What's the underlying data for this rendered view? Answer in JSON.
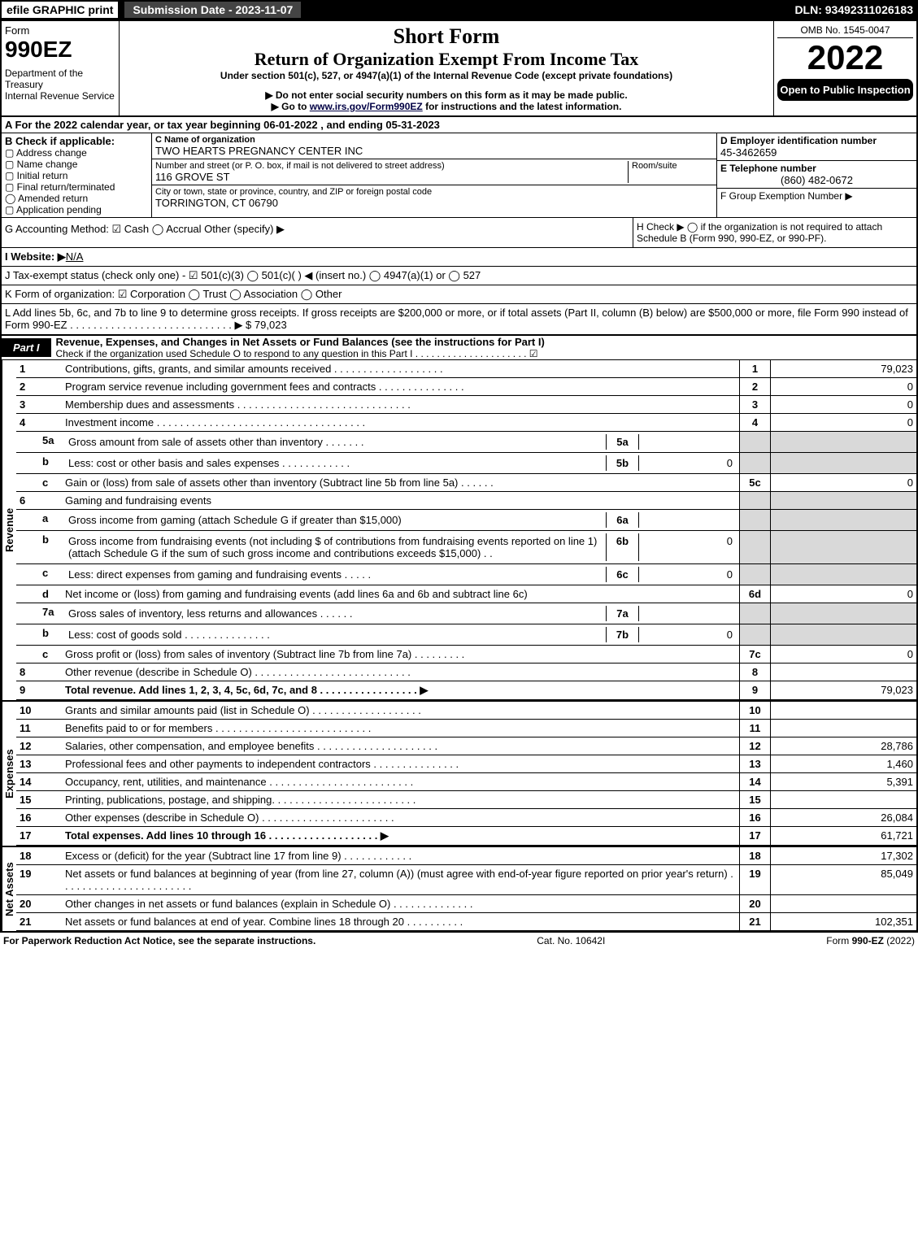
{
  "topbar": {
    "efile": "efile GRAPHIC print",
    "submission": "Submission Date - 2023-11-07",
    "dln": "DLN: 93492311026183"
  },
  "header": {
    "form_label": "Form",
    "form_number": "990EZ",
    "dept": "Department of the Treasury\nInternal Revenue Service",
    "title_short": "Short Form",
    "title_main": "Return of Organization Exempt From Income Tax",
    "under": "Under section 501(c), 527, or 4947(a)(1) of the Internal Revenue Code (except private foundations)",
    "warn1": "▶ Do not enter social security numbers on this form as it may be made public.",
    "warn2": "▶ Go to www.irs.gov/Form990EZ for instructions and the latest information.",
    "omb": "OMB No. 1545-0047",
    "year": "2022",
    "open": "Open to Public Inspection"
  },
  "secA": "A  For the 2022 calendar year, or tax year beginning 06-01-2022 , and ending 05-31-2023",
  "secB": {
    "label": "B  Check if applicable:",
    "opts": [
      "Address change",
      "Name change",
      "Initial return",
      "Final return/terminated",
      "Amended return",
      "Application pending"
    ]
  },
  "secC": {
    "name_label": "C Name of organization",
    "name": "TWO HEARTS PREGNANCY CENTER INC",
    "street_label": "Number and street (or P. O. box, if mail is not delivered to street address)",
    "street": "116 GROVE ST",
    "room_label": "Room/suite",
    "city_label": "City or town, state or province, country, and ZIP or foreign postal code",
    "city": "TORRINGTON, CT  06790"
  },
  "secDEF": {
    "d_label": "D Employer identification number",
    "d_val": "45-3462659",
    "e_label": "E Telephone number",
    "e_val": "(860) 482-0672",
    "f_label": "F Group Exemption Number  ▶"
  },
  "secG": "G Accounting Method:  ☑ Cash  ◯ Accrual   Other (specify) ▶",
  "secH": "H  Check ▶  ◯  if the organization is not required to attach Schedule B (Form 990, 990-EZ, or 990-PF).",
  "secI_label": "I Website: ▶",
  "secI_val": "N/A",
  "secJ": "J Tax-exempt status (check only one) - ☑ 501(c)(3) ◯ 501(c)(  ) ◀ (insert no.) ◯ 4947(a)(1) or ◯ 527",
  "secK": "K Form of organization:  ☑ Corporation  ◯ Trust  ◯ Association  ◯ Other",
  "secL": {
    "text": "L Add lines 5b, 6c, and 7b to line 9 to determine gross receipts. If gross receipts are $200,000 or more, or if total assets (Part II, column (B) below) are $500,000 or more, file Form 990 instead of Form 990-EZ  .  .  .  .  .  .  .  .  .  .  .  .  .  .  .  .  .  .  .  .  .  .  .  .  .  .  .  .  ▶ $",
    "val": "79,023"
  },
  "part1": {
    "tab": "Part I",
    "title": "Revenue, Expenses, and Changes in Net Assets or Fund Balances (see the instructions for Part I)",
    "check": "Check if the organization used Schedule O to respond to any question in this Part I  .  .  .  .  .  .  .  .  .  .  .  .  .  .  .  .  .  .  .  .  .  ☑"
  },
  "side": {
    "rev": "Revenue",
    "exp": "Expenses",
    "net": "Net Assets"
  },
  "lines": {
    "l1": {
      "n": "1",
      "t": "Contributions, gifts, grants, and similar amounts received  .  .  .  .  .  .  .  .  .  .  .  .  .  .  .  .  .  .  .",
      "r": "1",
      "v": "79,023"
    },
    "l2": {
      "n": "2",
      "t": "Program service revenue including government fees and contracts  .  .  .  .  .  .  .  .  .  .  .  .  .  .  .",
      "r": "2",
      "v": "0"
    },
    "l3": {
      "n": "3",
      "t": "Membership dues and assessments  .  .  .  .  .  .  .  .  .  .  .  .  .  .  .  .  .  .  .  .  .  .  .  .  .  .  .  .  .  .",
      "r": "3",
      "v": "0"
    },
    "l4": {
      "n": "4",
      "t": "Investment income  .  .  .  .  .  .  .  .  .  .  .  .  .  .  .  .  .  .  .  .  .  .  .  .  .  .  .  .  .  .  .  .  .  .  .  .",
      "r": "4",
      "v": "0"
    },
    "l5a": {
      "n": "5a",
      "t": "Gross amount from sale of assets other than inventory  .  .  .  .  .  .  .",
      "box": "5a",
      "bv": ""
    },
    "l5b": {
      "n": "b",
      "t": "Less: cost or other basis and sales expenses  .  .  .  .  .  .  .  .  .  .  .  .",
      "box": "5b",
      "bv": "0"
    },
    "l5c": {
      "n": "c",
      "t": "Gain or (loss) from sale of assets other than inventory (Subtract line 5b from line 5a)  .  .  .  .  .  .",
      "r": "5c",
      "v": "0"
    },
    "l6": {
      "n": "6",
      "t": "Gaming and fundraising events"
    },
    "l6a": {
      "n": "a",
      "t": "Gross income from gaming (attach Schedule G if greater than $15,000)",
      "box": "6a",
      "bv": ""
    },
    "l6b": {
      "n": "b",
      "t": "Gross income from fundraising events (not including $                     of contributions from fundraising events reported on line 1) (attach Schedule G if the sum of such gross income and contributions exceeds $15,000)   .   .",
      "box": "6b",
      "bv": "0"
    },
    "l6c": {
      "n": "c",
      "t": "Less: direct expenses from gaming and fundraising events   .  .  .  .  .",
      "box": "6c",
      "bv": "0"
    },
    "l6d": {
      "n": "d",
      "t": "Net income or (loss) from gaming and fundraising events (add lines 6a and 6b and subtract line 6c)",
      "r": "6d",
      "v": "0"
    },
    "l7a": {
      "n": "7a",
      "t": "Gross sales of inventory, less returns and allowances  .  .  .  .  .  .",
      "box": "7a",
      "bv": ""
    },
    "l7b": {
      "n": "b",
      "t": "Less: cost of goods sold        .  .  .  .  .  .  .  .  .  .  .  .  .  .  .",
      "box": "7b",
      "bv": "0"
    },
    "l7c": {
      "n": "c",
      "t": "Gross profit or (loss) from sales of inventory (Subtract line 7b from line 7a)  .  .  .  .  .  .  .  .  .",
      "r": "7c",
      "v": "0"
    },
    "l8": {
      "n": "8",
      "t": "Other revenue (describe in Schedule O)  .  .  .  .  .  .  .  .  .  .  .  .  .  .  .  .  .  .  .  .  .  .  .  .  .  .  .",
      "r": "8",
      "v": ""
    },
    "l9": {
      "n": "9",
      "t": "Total revenue. Add lines 1, 2, 3, 4, 5c, 6d, 7c, and 8  .  .  .  .  .  .  .  .  .  .  .  .  .  .  .  .  .  ▶",
      "r": "9",
      "v": "79,023",
      "bold": true
    },
    "l10": {
      "n": "10",
      "t": "Grants and similar amounts paid (list in Schedule O)  .  .  .  .  .  .  .  .  .  .  .  .  .  .  .  .  .  .  .",
      "r": "10",
      "v": ""
    },
    "l11": {
      "n": "11",
      "t": "Benefits paid to or for members     .  .  .  .  .  .  .  .  .  .  .  .  .  .  .  .  .  .  .  .  .  .  .  .  .  .  .",
      "r": "11",
      "v": ""
    },
    "l12": {
      "n": "12",
      "t": "Salaries, other compensation, and employee benefits  .  .  .  .  .  .  .  .  .  .  .  .  .  .  .  .  .  .  .  .  .",
      "r": "12",
      "v": "28,786"
    },
    "l13": {
      "n": "13",
      "t": "Professional fees and other payments to independent contractors  .  .  .  .  .  .  .  .  .  .  .  .  .  .  .",
      "r": "13",
      "v": "1,460"
    },
    "l14": {
      "n": "14",
      "t": "Occupancy, rent, utilities, and maintenance  .  .  .  .  .  .  .  .  .  .  .  .  .  .  .  .  .  .  .  .  .  .  .  .  .",
      "r": "14",
      "v": "5,391"
    },
    "l15": {
      "n": "15",
      "t": "Printing, publications, postage, and shipping.  .  .  .  .  .  .  .  .  .  .  .  .  .  .  .  .  .  .  .  .  .  .  .  .",
      "r": "15",
      "v": ""
    },
    "l16": {
      "n": "16",
      "t": "Other expenses (describe in Schedule O)     .  .  .  .  .  .  .  .  .  .  .  .  .  .  .  .  .  .  .  .  .  .  .",
      "r": "16",
      "v": "26,084"
    },
    "l17": {
      "n": "17",
      "t": "Total expenses. Add lines 10 through 16     .  .  .  .  .  .  .  .  .  .  .  .  .  .  .  .  .  .  .  ▶",
      "r": "17",
      "v": "61,721",
      "bold": true
    },
    "l18": {
      "n": "18",
      "t": "Excess or (deficit) for the year (Subtract line 17 from line 9)       .  .  .  .  .  .  .  .  .  .  .  .",
      "r": "18",
      "v": "17,302"
    },
    "l19": {
      "n": "19",
      "t": "Net assets or fund balances at beginning of year (from line 27, column (A)) (must agree with end-of-year figure reported on prior year's return)  .  .  .  .  .  .  .  .  .  .  .  .  .  .  .  .  .  .  .  .  .  .  .",
      "r": "19",
      "v": "85,049"
    },
    "l20": {
      "n": "20",
      "t": "Other changes in net assets or fund balances (explain in Schedule O)  .  .  .  .  .  .  .  .  .  .  .  .  .  .",
      "r": "20",
      "v": ""
    },
    "l21": {
      "n": "21",
      "t": "Net assets or fund balances at end of year. Combine lines 18 through 20  .  .  .  .  .  .  .  .  .  .",
      "r": "21",
      "v": "102,351"
    }
  },
  "footer": {
    "left": "For Paperwork Reduction Act Notice, see the separate instructions.",
    "mid": "Cat. No. 10642I",
    "right": "Form 990-EZ (2022)"
  },
  "colors": {
    "black": "#000000",
    "white": "#ffffff",
    "grey": "#d9d9d9",
    "darkgrey": "#444444"
  }
}
